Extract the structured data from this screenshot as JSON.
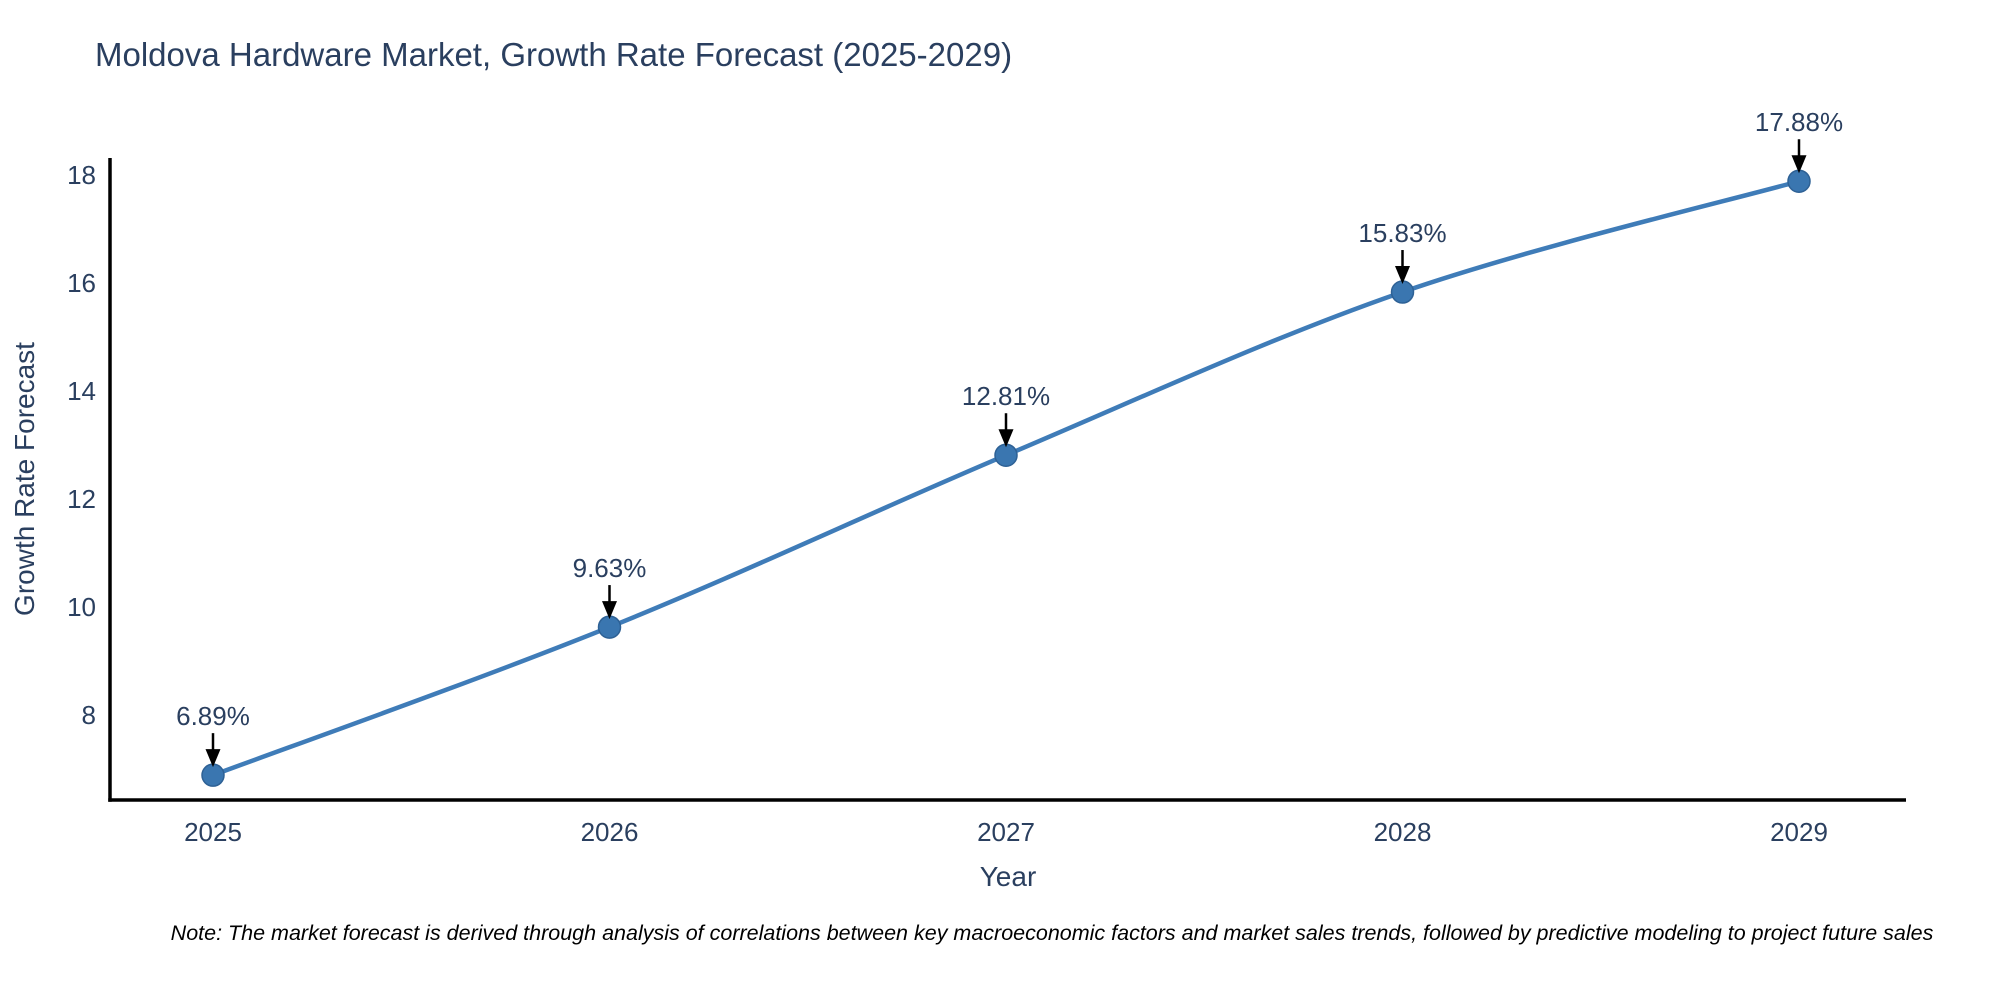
{
  "chart_data": {
    "type": "line",
    "title": "Moldova Hardware Market, Growth Rate Forecast (2025-2029)",
    "xlabel": "Year",
    "ylabel": "Growth Rate Forecast",
    "x": [
      "2025",
      "2026",
      "2027",
      "2028",
      "2029"
    ],
    "series": [
      {
        "name": "Growth Rate Forecast",
        "values": [
          6.89,
          9.63,
          12.81,
          15.83,
          17.88
        ]
      }
    ],
    "point_labels": [
      "6.89%",
      "9.63%",
      "12.81%",
      "15.83%",
      "17.88%"
    ],
    "yticks": [
      8,
      10,
      12,
      14,
      16,
      18
    ],
    "ylim": [
      6.43,
      18.31
    ],
    "grid": false,
    "legend_position": "none",
    "line_shape": "spline",
    "marker": "circle",
    "note": "Note: The market forecast is derived through analysis of correlations between key macroeconomic factors and market sales trends, followed by predictive modeling to project future sales",
    "colors": {
      "line": "#3f7cb8",
      "marker_fill": "#3a76b0",
      "marker_edge": "#2e6195",
      "axis_line": "#000000",
      "chart_text": "#2a3f5f",
      "annotation_text": "#2a3f5f",
      "annotation_arrow": "#000000",
      "note_text": "#000000",
      "background": "#ffffff"
    }
  }
}
